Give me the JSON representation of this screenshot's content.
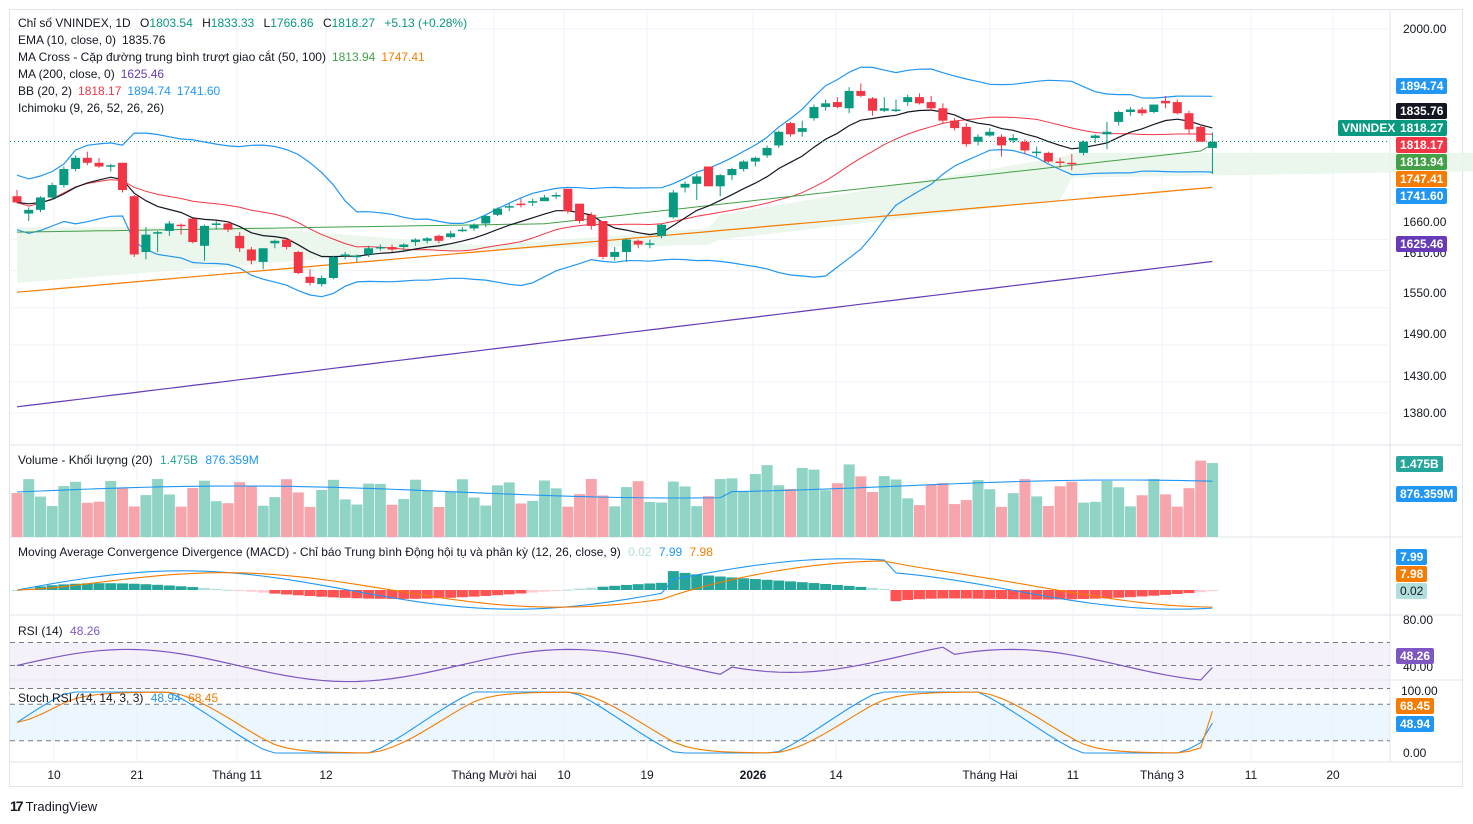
{
  "header": {
    "symbol": "Chỉ số VNINDEX, 1D",
    "ohlc": {
      "O": "1803.54",
      "H": "1833.33",
      "L": "1766.86",
      "C": "1818.27",
      "change": "+5.13 (+0.28%)"
    },
    "indicators": [
      {
        "name": "EMA (10, close, 0)",
        "values": [
          "1835.76"
        ],
        "colors": [
          "#131722"
        ]
      },
      {
        "name": "MA Cross - Cặp đường trung bình trượt giao cắt (50, 100)",
        "values": [
          "1813.94",
          "1747.41"
        ],
        "colors": [
          "#43a047",
          "#f57c00"
        ]
      },
      {
        "name": "MA (200, close, 0)",
        "values": [
          "1625.46"
        ],
        "colors": [
          "#673ab7"
        ]
      },
      {
        "name": "BB (20, 2)",
        "values": [
          "1818.17",
          "1894.74",
          "1741.60"
        ],
        "colors": [
          "#f23645",
          "#2196f3",
          "#2196f3"
        ]
      },
      {
        "name": "Ichimoku (9, 26, 52, 26, 26)",
        "values": [],
        "colors": []
      }
    ]
  },
  "price_axis": {
    "ticks": [
      "2000.00",
      "1660.00",
      "1610.00",
      "1550.00",
      "1490.00",
      "1430.00",
      "1380.00"
    ],
    "labels": [
      {
        "text": "1894.74",
        "color": "#2196f3",
        "value": 1894.74
      },
      {
        "text": "1835.76",
        "color": "#131722",
        "value": 1835.76
      },
      {
        "text": "1818.27",
        "color": "#089981",
        "value": 1818.27
      },
      {
        "text": "1818.17",
        "color": "#f23645",
        "value": 1818.17
      },
      {
        "text": "1813.94",
        "color": "#43a047",
        "value": 1813.94
      },
      {
        "text": "1747.41",
        "color": "#f57c00",
        "value": 1747.41
      },
      {
        "text": "1741.60",
        "color": "#2196f3",
        "value": 1741.6
      },
      {
        "text": "1625.46",
        "color": "#673ab7",
        "value": 1625.46
      }
    ],
    "symbol_tag": "VNINDEX"
  },
  "volume": {
    "title": "Volume - Khối lượng (20)",
    "value": "1.475B",
    "ma_value": "876.359M",
    "axis_labels": [
      "1.475B",
      "876.359M"
    ]
  },
  "macd": {
    "title": "Moving Average Convergence Divergence (MACD) - Chỉ báo Trung bình Động hội tụ và phân kỳ (12, 26, close, 9)",
    "hist": "0.02",
    "macd": "7.99",
    "signal": "7.98",
    "axis_labels": [
      "7.99",
      "7.98",
      "0.02"
    ]
  },
  "rsi": {
    "title": "RSI (14)",
    "value": "48.26",
    "ticks": [
      "80.00",
      "40.00"
    ],
    "axis_label": "48.26"
  },
  "stoch": {
    "title": "Stoch RSI (14, 14, 3, 3)",
    "k": "48.94",
    "d": "68.45",
    "ticks": [
      "100.00",
      "0.00"
    ],
    "axis_labels": [
      "68.45",
      "48.94"
    ]
  },
  "time_axis": [
    "10",
    "21",
    "Tháng 11",
    "12",
    "Tháng Mười hai",
    "10",
    "19",
    "2026",
    "14",
    "Tháng Hai",
    "11",
    "Tháng 3",
    "11",
    "20"
  ],
  "footer": {
    "brand": "TradingView"
  },
  "chart_data": {
    "type": "candlestick",
    "title": "Chỉ số VNINDEX, 1D",
    "ylim": [
      1350,
      2010
    ],
    "candles": [
      [
        1730,
        1740,
        1718,
        1720
      ],
      [
        1702,
        1712,
        1690,
        1708
      ],
      [
        1708,
        1730,
        1704,
        1728
      ],
      [
        1728,
        1752,
        1724,
        1748
      ],
      [
        1748,
        1778,
        1744,
        1774
      ],
      [
        1774,
        1796,
        1770,
        1792
      ],
      [
        1792,
        1802,
        1780,
        1784
      ],
      [
        1784,
        1792,
        1776,
        1778
      ],
      [
        1780,
        1782,
        1770,
        1780
      ],
      [
        1784,
        1784,
        1736,
        1740
      ],
      [
        1730,
        1732,
        1632,
        1636
      ],
      [
        1640,
        1680,
        1628,
        1668
      ],
      [
        1672,
        1674,
        1640,
        1672
      ],
      [
        1674,
        1690,
        1666,
        1686
      ],
      [
        1684,
        1686,
        1668,
        1682
      ],
      [
        1694,
        1694,
        1654,
        1656
      ],
      [
        1650,
        1684,
        1626,
        1682
      ],
      [
        1686,
        1690,
        1676,
        1686
      ],
      [
        1686,
        1690,
        1672,
        1676
      ],
      [
        1666,
        1672,
        1640,
        1646
      ],
      [
        1644,
        1648,
        1620,
        1626
      ],
      [
        1624,
        1646,
        1612,
        1646
      ],
      [
        1654,
        1660,
        1646,
        1658
      ],
      [
        1660,
        1662,
        1644,
        1648
      ],
      [
        1640,
        1642,
        1604,
        1606
      ],
      [
        1600,
        1612,
        1586,
        1590
      ],
      [
        1588,
        1602,
        1584,
        1598
      ],
      [
        1598,
        1634,
        1596,
        1632
      ],
      [
        1634,
        1640,
        1628,
        1636
      ],
      [
        1632,
        1636,
        1624,
        1634
      ],
      [
        1636,
        1650,
        1632,
        1646
      ],
      [
        1648,
        1652,
        1642,
        1648
      ],
      [
        1648,
        1652,
        1640,
        1644
      ],
      [
        1648,
        1654,
        1642,
        1652
      ],
      [
        1656,
        1662,
        1650,
        1660
      ],
      [
        1658,
        1664,
        1654,
        1662
      ],
      [
        1666,
        1668,
        1654,
        1658
      ],
      [
        1664,
        1674,
        1662,
        1670
      ],
      [
        1674,
        1680,
        1672,
        1676
      ],
      [
        1678,
        1686,
        1674,
        1684
      ],
      [
        1686,
        1700,
        1680,
        1698
      ],
      [
        1700,
        1712,
        1698,
        1710
      ],
      [
        1712,
        1718,
        1706,
        1714
      ],
      [
        1718,
        1726,
        1712,
        1716
      ],
      [
        1720,
        1726,
        1714,
        1722
      ],
      [
        1722,
        1732,
        1722,
        1728
      ],
      [
        1730,
        1736,
        1726,
        1732
      ],
      [
        1742,
        1742,
        1702,
        1706
      ],
      [
        1718,
        1718,
        1686,
        1690
      ],
      [
        1700,
        1704,
        1676,
        1682
      ],
      [
        1690,
        1690,
        1628,
        1632
      ],
      [
        1632,
        1648,
        1626,
        1640
      ],
      [
        1640,
        1662,
        1624,
        1660
      ],
      [
        1658,
        1660,
        1646,
        1652
      ],
      [
        1652,
        1660,
        1646,
        1654
      ],
      [
        1666,
        1686,
        1662,
        1684
      ],
      [
        1696,
        1740,
        1694,
        1736
      ],
      [
        1744,
        1754,
        1736,
        1750
      ],
      [
        1750,
        1766,
        1724,
        1762
      ],
      [
        1778,
        1778,
        1746,
        1746
      ],
      [
        1746,
        1766,
        1730,
        1764
      ],
      [
        1764,
        1776,
        1756,
        1774
      ],
      [
        1774,
        1788,
        1770,
        1786
      ],
      [
        1786,
        1794,
        1778,
        1792
      ],
      [
        1796,
        1812,
        1792,
        1808
      ],
      [
        1812,
        1836,
        1808,
        1834
      ],
      [
        1848,
        1850,
        1826,
        1830
      ],
      [
        1834,
        1852,
        1826,
        1840
      ],
      [
        1856,
        1878,
        1852,
        1874
      ],
      [
        1874,
        1886,
        1868,
        1880
      ],
      [
        1882,
        1890,
        1872,
        1874
      ],
      [
        1872,
        1906,
        1864,
        1900
      ],
      [
        1900,
        1912,
        1890,
        1892
      ],
      [
        1888,
        1890,
        1860,
        1868
      ],
      [
        1868,
        1890,
        1866,
        1872
      ],
      [
        1868,
        1886,
        1866,
        1870
      ],
      [
        1882,
        1894,
        1876,
        1890
      ],
      [
        1890,
        1896,
        1878,
        1880
      ],
      [
        1882,
        1892,
        1868,
        1872
      ],
      [
        1872,
        1880,
        1848,
        1852
      ],
      [
        1852,
        1856,
        1836,
        1840
      ],
      [
        1842,
        1848,
        1810,
        1814
      ],
      [
        1818,
        1830,
        1812,
        1826
      ],
      [
        1828,
        1840,
        1826,
        1834
      ],
      [
        1826,
        1830,
        1794,
        1812
      ],
      [
        1820,
        1830,
        1816,
        1824
      ],
      [
        1818,
        1822,
        1798,
        1804
      ],
      [
        1802,
        1810,
        1794,
        1802
      ],
      [
        1800,
        1802,
        1784,
        1786
      ],
      [
        1786,
        1792,
        1776,
        1784
      ],
      [
        1784,
        1798,
        1772,
        1782
      ],
      [
        1800,
        1820,
        1796,
        1818
      ],
      [
        1824,
        1830,
        1816,
        1828
      ],
      [
        1830,
        1850,
        1806,
        1834
      ],
      [
        1850,
        1868,
        1844,
        1866
      ],
      [
        1866,
        1874,
        1860,
        1870
      ],
      [
        1870,
        1874,
        1860,
        1864
      ],
      [
        1866,
        1878,
        1864,
        1878
      ],
      [
        1884,
        1892,
        1872,
        1880
      ],
      [
        1882,
        1886,
        1862,
        1864
      ],
      [
        1864,
        1868,
        1830,
        1838
      ],
      [
        1842,
        1846,
        1818,
        1818
      ],
      [
        1808,
        1833,
        1766,
        1818
      ]
    ],
    "series": [
      {
        "name": "EMA 10",
        "color": "#131722",
        "last": 1835.76
      },
      {
        "name": "MA 50",
        "color": "#43a047",
        "last": 1813.94
      },
      {
        "name": "MA 100",
        "color": "#f57c00",
        "last": 1747.41
      },
      {
        "name": "MA 200",
        "color": "#673ab7",
        "last": 1625.46
      },
      {
        "name": "BB basis",
        "color": "#f23645",
        "last": 1818.17
      },
      {
        "name": "BB upper",
        "color": "#2196f3",
        "last": 1894.74
      },
      {
        "name": "BB lower",
        "color": "#2196f3",
        "last": 1741.6
      }
    ]
  }
}
